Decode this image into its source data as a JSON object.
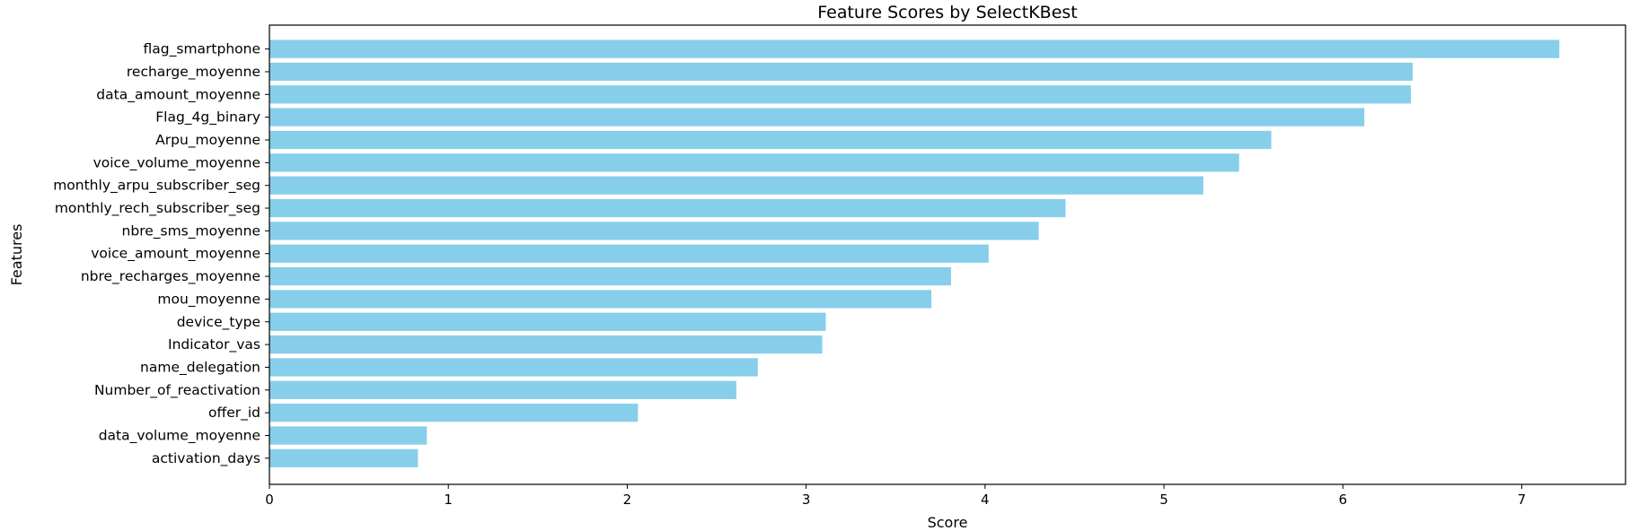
{
  "chart_data": {
    "type": "bar",
    "orientation": "horizontal",
    "title": "Feature Scores by SelectKBest",
    "xlabel": "Score",
    "ylabel": "Features",
    "xlim": [
      0,
      7.58
    ],
    "xticks": [
      0,
      1,
      2,
      3,
      4,
      5,
      6,
      7
    ],
    "grid": false,
    "legend": "none",
    "bar_color": "#87CEEB",
    "categories": [
      "flag_smartphone",
      "recharge_moyenne",
      "data_amount_moyenne",
      "Flag_4g_binary",
      "Arpu_moyenne",
      "voice_volume_moyenne",
      "monthly_arpu_subscriber_seg",
      "monthly_rech_subscriber_seg",
      "nbre_sms_moyenne",
      "voice_amount_moyenne",
      "nbre_recharges_moyenne",
      "mou_moyenne",
      "device_type",
      "Indicator_vas",
      "name_delegation",
      "Number_of_reactivation",
      "offer_id",
      "data_volume_moyenne",
      "activation_days"
    ],
    "values": [
      7.21,
      6.39,
      6.38,
      6.12,
      5.6,
      5.42,
      5.22,
      4.45,
      4.3,
      4.02,
      3.81,
      3.7,
      3.11,
      3.09,
      2.73,
      2.61,
      2.06,
      0.88,
      0.83
    ]
  }
}
